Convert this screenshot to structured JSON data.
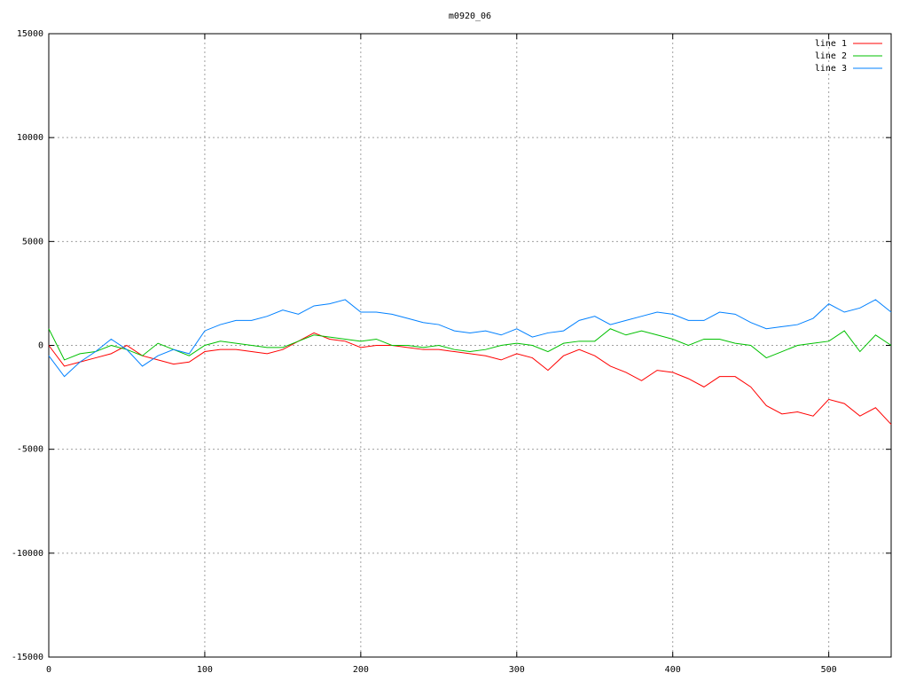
{
  "chart_data": {
    "type": "line",
    "title": "m0920_06",
    "x": [
      0,
      10,
      20,
      30,
      40,
      50,
      60,
      70,
      80,
      90,
      100,
      110,
      120,
      130,
      140,
      150,
      160,
      170,
      180,
      190,
      200,
      210,
      220,
      230,
      240,
      250,
      260,
      270,
      280,
      290,
      300,
      310,
      320,
      330,
      340,
      350,
      360,
      370,
      380,
      390,
      400,
      410,
      420,
      430,
      440,
      450,
      460,
      470,
      480,
      490,
      500,
      510,
      520,
      530,
      540
    ],
    "series": [
      {
        "name": "line 1",
        "color": "#ff0000",
        "values": [
          0,
          -1000,
          -800,
          -600,
          -400,
          0,
          -500,
          -700,
          -900,
          -800,
          -300,
          -200,
          -200,
          -300,
          -400,
          -200,
          200,
          600,
          300,
          200,
          -100,
          0,
          0,
          -100,
          -200,
          -200,
          -300,
          -400,
          -500,
          -700,
          -400,
          -600,
          -1200,
          -500,
          -200,
          -500,
          -1000,
          -1300,
          -1700,
          -1200,
          -1300,
          -1600,
          -2000,
          -1500,
          -1500,
          -2000,
          -2900,
          -3300,
          -3200,
          -3400,
          -2600,
          -2800,
          -3400,
          -3000,
          -3800
        ]
      },
      {
        "name": "line 2",
        "color": "#00c000",
        "values": [
          800,
          -700,
          -400,
          -300,
          0,
          -200,
          -500,
          100,
          -200,
          -500,
          0,
          200,
          100,
          0,
          -100,
          -100,
          200,
          500,
          400,
          300,
          200,
          300,
          0,
          0,
          -100,
          0,
          -200,
          -300,
          -200,
          0,
          100,
          0,
          -300,
          100,
          200,
          200,
          800,
          500,
          700,
          500,
          300,
          0,
          300,
          300,
          100,
          0,
          -600,
          -300,
          0,
          100,
          200,
          700,
          -300,
          500,
          0
        ]
      },
      {
        "name": "line 3",
        "color": "#0080ff",
        "values": [
          -500,
          -1500,
          -800,
          -300,
          300,
          -200,
          -1000,
          -500,
          -200,
          -400,
          700,
          1000,
          1200,
          1200,
          1400,
          1700,
          1500,
          1900,
          2000,
          2200,
          1600,
          1600,
          1500,
          1300,
          1100,
          1000,
          700,
          600,
          700,
          500,
          800,
          400,
          600,
          700,
          1200,
          1400,
          1000,
          1200,
          1400,
          1600,
          1500,
          1200,
          1200,
          1600,
          1500,
          1100,
          800,
          900,
          1000,
          1300,
          2000,
          1600,
          1800,
          2200,
          1600
        ]
      }
    ],
    "xlim": [
      0,
      540
    ],
    "xticks": [
      0,
      100,
      200,
      300,
      400,
      500
    ],
    "ylim": [
      -15000,
      15000
    ],
    "yticks": [
      -15000,
      -10000,
      -5000,
      0,
      5000,
      10000,
      15000
    ],
    "grid": true,
    "legend": "top-right"
  }
}
